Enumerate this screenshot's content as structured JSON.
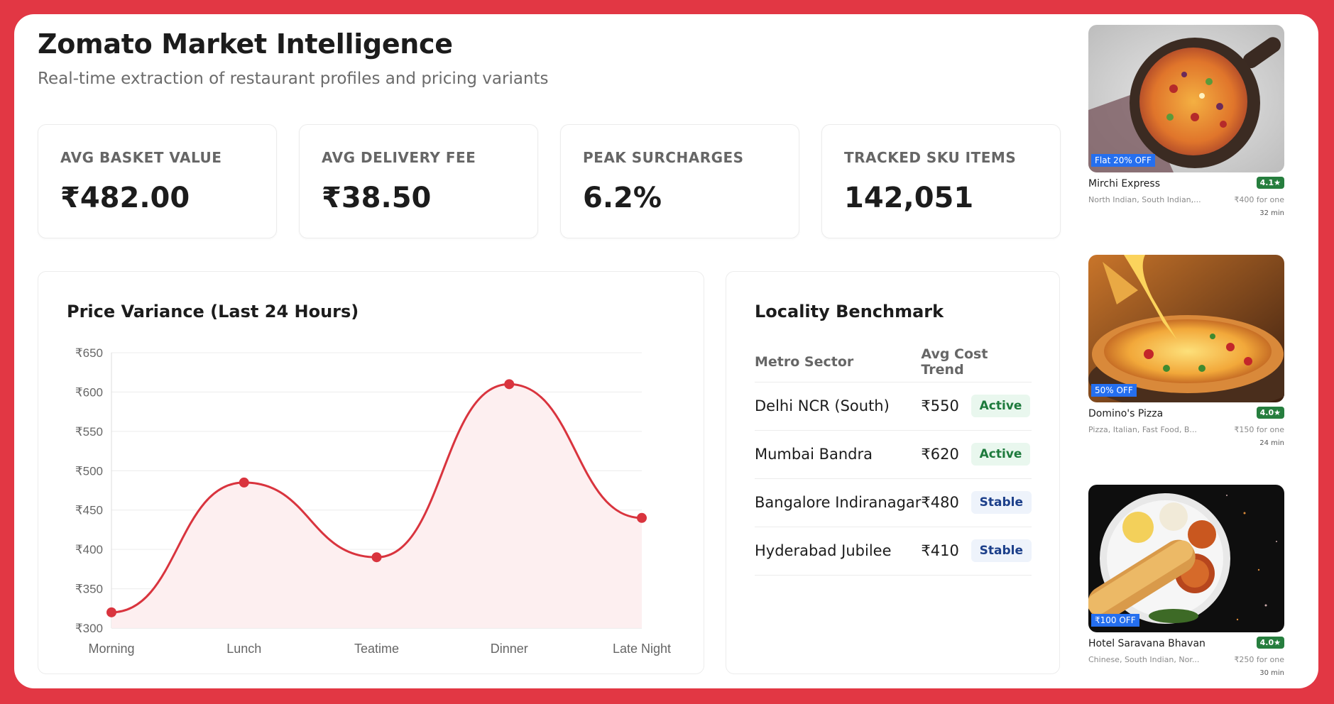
{
  "header": {
    "title": "Zomato Market Intelligence",
    "subtitle": "Real-time extraction of restaurant profiles and pricing variants"
  },
  "kpis": [
    {
      "label": "AVG BASKET VALUE",
      "value": "₹482.00"
    },
    {
      "label": "AVG DELIVERY FEE",
      "value": "₹38.50"
    },
    {
      "label": "PEAK SURCHARGES",
      "value": "6.2%"
    },
    {
      "label": "TRACKED SKU ITEMS",
      "value": "142,051"
    }
  ],
  "price_panel": {
    "title": "Price Variance (Last 24 Hours)"
  },
  "chart_data": {
    "type": "line",
    "title": "Price Variance (Last 24 Hours)",
    "categories": [
      "Morning",
      "Lunch",
      "Teatime",
      "Dinner",
      "Late Night"
    ],
    "values": [
      320,
      485,
      390,
      610,
      440
    ],
    "ylim": [
      300,
      650
    ],
    "yticks": [
      "₹300",
      "₹350",
      "₹400",
      "₹450",
      "₹500",
      "₹550",
      "₹600",
      "₹650"
    ],
    "ytick_values": [
      300,
      350,
      400,
      450,
      500,
      550,
      600,
      650
    ],
    "grid": true,
    "color": "#d9343e",
    "fill": "#fdeff0"
  },
  "benchmark": {
    "title": "Locality Benchmark",
    "columns": [
      "Metro Sector",
      "Avg Cost Trend"
    ],
    "rows": [
      {
        "sector": "Delhi NCR (South)",
        "cost": "₹550",
        "status": "Active"
      },
      {
        "sector": "Mumbai Bandra",
        "cost": "₹620",
        "status": "Active"
      },
      {
        "sector": "Bangalore Indiranagar",
        "cost": "₹480",
        "status": "Stable"
      },
      {
        "sector": "Hyderabad Jubilee",
        "cost": "₹410",
        "status": "Stable"
      }
    ]
  },
  "restaurants": [
    {
      "name": "Mirchi Express",
      "offer": "Flat 20% OFF",
      "rating": "4.1★",
      "cuisines": "North Indian, South Indian,...",
      "price": "₹400 for one",
      "eta": "32 min",
      "image": "pizza-on-board"
    },
    {
      "name": "Domino's Pizza",
      "offer": "50% OFF",
      "rating": "4.0★",
      "cuisines": "Pizza, Italian, Fast Food, B...",
      "price": "₹150 for one",
      "eta": "24 min",
      "image": "cheese-pull-pizza"
    },
    {
      "name": "Hotel Saravana Bhavan",
      "offer": "₹100 OFF",
      "rating": "4.0★",
      "cuisines": "Chinese, South Indian, Nor...",
      "price": "₹250 for one",
      "eta": "30 min",
      "image": "dosa-thali"
    }
  ]
}
